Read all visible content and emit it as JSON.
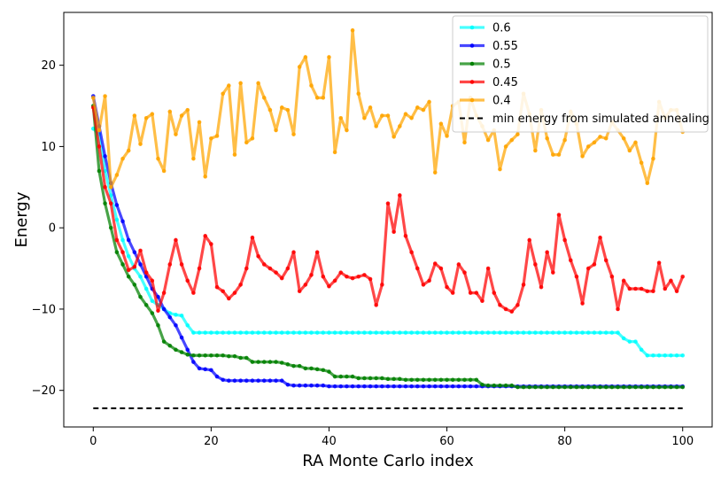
{
  "chart_data": {
    "type": "line",
    "title": "",
    "xlabel": "RA Monte Carlo index",
    "ylabel": "Energy",
    "xlim": [
      -5,
      105
    ],
    "ylim": [
      -24.5,
      26.5
    ],
    "xticks": [
      0,
      20,
      40,
      60,
      80,
      100
    ],
    "yticks": [
      -20,
      -10,
      0,
      10,
      20
    ],
    "xtick_labels": [
      "0",
      "20",
      "40",
      "60",
      "80",
      "100"
    ],
    "ytick_labels": [
      "−20",
      "−10",
      "0",
      "10",
      "20"
    ],
    "legend_position": "top-right",
    "series": [
      {
        "name": "0.6",
        "color": "#00ffff",
        "values": [
          12.2,
          11.5,
          7.0,
          4.0,
          1.0,
          -1.5,
          -3.5,
          -5.0,
          -6.0,
          -7.5,
          -9.0,
          -9.5,
          -10.0,
          -10.5,
          -10.7,
          -10.8,
          -12.0,
          -12.9,
          -12.9,
          -12.9,
          -12.9,
          -12.9,
          -12.9,
          -12.9,
          -12.9,
          -12.9,
          -12.9,
          -12.9,
          -12.9,
          -12.9,
          -12.9,
          -12.9,
          -12.9,
          -12.9,
          -12.9,
          -12.9,
          -12.9,
          -12.9,
          -12.9,
          -12.9,
          -12.9,
          -12.9,
          -12.9,
          -12.9,
          -12.9,
          -12.9,
          -12.9,
          -12.9,
          -12.9,
          -12.9,
          -12.9,
          -12.9,
          -12.9,
          -12.9,
          -12.9,
          -12.9,
          -12.9,
          -12.9,
          -12.9,
          -12.9,
          -12.9,
          -12.9,
          -12.9,
          -12.9,
          -12.9,
          -12.9,
          -12.9,
          -12.9,
          -12.9,
          -12.9,
          -12.9,
          -12.9,
          -12.9,
          -12.9,
          -12.9,
          -12.9,
          -12.9,
          -12.9,
          -12.9,
          -12.9,
          -12.9,
          -12.9,
          -12.9,
          -12.9,
          -12.9,
          -12.9,
          -12.9,
          -12.9,
          -12.9,
          -12.9,
          -13.6,
          -14.0,
          -14.0,
          -15.0,
          -15.7,
          -15.7,
          -15.7,
          -15.7,
          -15.7,
          -15.7,
          -15.7
        ]
      },
      {
        "name": "0.55",
        "color": "#0000ff",
        "values": [
          16.2,
          12.5,
          8.8,
          5.5,
          2.8,
          0.8,
          -1.5,
          -3.0,
          -4.5,
          -6.0,
          -7.5,
          -8.5,
          -10.0,
          -11.0,
          -12.0,
          -13.5,
          -15.0,
          -16.5,
          -17.3,
          -17.4,
          -17.5,
          -18.3,
          -18.7,
          -18.8,
          -18.8,
          -18.8,
          -18.8,
          -18.8,
          -18.8,
          -18.8,
          -18.8,
          -18.8,
          -18.8,
          -19.3,
          -19.4,
          -19.4,
          -19.4,
          -19.4,
          -19.4,
          -19.4,
          -19.5,
          -19.5,
          -19.5,
          -19.5,
          -19.5,
          -19.5,
          -19.5,
          -19.5,
          -19.5,
          -19.5,
          -19.5,
          -19.5,
          -19.5,
          -19.5,
          -19.5,
          -19.5,
          -19.5,
          -19.5,
          -19.5,
          -19.5,
          -19.5,
          -19.5,
          -19.5,
          -19.5,
          -19.5,
          -19.5,
          -19.5,
          -19.5,
          -19.5,
          -19.5,
          -19.5,
          -19.5,
          -19.5,
          -19.5,
          -19.5,
          -19.5,
          -19.5,
          -19.5,
          -19.5,
          -19.5,
          -19.5,
          -19.5,
          -19.5,
          -19.5,
          -19.5,
          -19.5,
          -19.5,
          -19.5,
          -19.5,
          -19.5,
          -19.5,
          -19.5,
          -19.5,
          -19.5,
          -19.5,
          -19.5,
          -19.5,
          -19.5,
          -19.5,
          -19.5,
          -19.5
        ]
      },
      {
        "name": "0.5",
        "color": "#008000",
        "values": [
          15.0,
          7.0,
          3.0,
          0.0,
          -3.0,
          -4.5,
          -6.0,
          -7.0,
          -8.5,
          -9.5,
          -10.5,
          -12.0,
          -14.0,
          -14.5,
          -15.0,
          -15.3,
          -15.6,
          -15.7,
          -15.7,
          -15.7,
          -15.7,
          -15.7,
          -15.7,
          -15.8,
          -15.8,
          -16.0,
          -16.0,
          -16.5,
          -16.5,
          -16.5,
          -16.5,
          -16.5,
          -16.6,
          -16.8,
          -17.0,
          -17.0,
          -17.3,
          -17.3,
          -17.4,
          -17.5,
          -17.7,
          -18.3,
          -18.3,
          -18.3,
          -18.3,
          -18.5,
          -18.5,
          -18.5,
          -18.5,
          -18.5,
          -18.6,
          -18.6,
          -18.6,
          -18.7,
          -18.7,
          -18.7,
          -18.7,
          -18.7,
          -18.7,
          -18.7,
          -18.7,
          -18.7,
          -18.7,
          -18.7,
          -18.7,
          -18.7,
          -19.3,
          -19.4,
          -19.4,
          -19.4,
          -19.4,
          -19.4,
          -19.6,
          -19.6,
          -19.6,
          -19.6,
          -19.6,
          -19.6,
          -19.6,
          -19.6,
          -19.6,
          -19.6,
          -19.6,
          -19.6,
          -19.6,
          -19.6,
          -19.6,
          -19.6,
          -19.6,
          -19.6,
          -19.6,
          -19.6,
          -19.6,
          -19.6,
          -19.6,
          -19.6,
          -19.6,
          -19.6,
          -19.6,
          -19.6,
          -19.6
        ]
      },
      {
        "name": "0.45",
        "color": "#ff0000",
        "values": [
          14.8,
          10.0,
          5.0,
          3.0,
          -1.5,
          -3.0,
          -5.2,
          -4.8,
          -2.8,
          -5.5,
          -6.5,
          -10.2,
          -8.0,
          -4.5,
          -1.5,
          -4.5,
          -6.5,
          -8.0,
          -5.0,
          -1.0,
          -2.0,
          -7.3,
          -7.8,
          -8.7,
          -8.0,
          -7.0,
          -5.0,
          -1.2,
          -3.5,
          -4.5,
          -5.0,
          -5.5,
          -6.2,
          -5.0,
          -3.0,
          -7.8,
          -7.0,
          -5.8,
          -3.0,
          -6.0,
          -7.2,
          -6.5,
          -5.5,
          -6.0,
          -6.2,
          -6.0,
          -5.8,
          -6.3,
          -9.5,
          -7.0,
          3.0,
          -0.5,
          4.0,
          -1.0,
          -3.0,
          -5.0,
          -7.0,
          -6.5,
          -4.4,
          -5.0,
          -7.3,
          -8.0,
          -4.5,
          -5.5,
          -8.0,
          -8.0,
          -9.0,
          -5.0,
          -8.0,
          -9.5,
          -10.0,
          -10.3,
          -9.5,
          -7.0,
          -1.5,
          -4.5,
          -7.3,
          -3.0,
          -5.5,
          1.6,
          -1.5,
          -4.0,
          -6.0,
          -9.3,
          -5.0,
          -4.5,
          -1.2,
          -4.0,
          -6.0,
          -10.0,
          -6.5,
          -7.5,
          -7.5,
          -7.5,
          -7.8,
          -7.8,
          -4.3,
          -7.5,
          -6.5,
          -7.8,
          -6.0
        ]
      },
      {
        "name": "0.4",
        "color": "#ffa500",
        "values": [
          16.0,
          12.0,
          16.2,
          5.0,
          6.5,
          8.5,
          9.5,
          13.8,
          10.3,
          13.5,
          14.0,
          8.5,
          7.0,
          14.3,
          11.5,
          13.8,
          14.5,
          8.5,
          13.0,
          6.3,
          11.0,
          11.3,
          16.5,
          17.5,
          9.0,
          17.8,
          10.5,
          11.0,
          17.8,
          16.0,
          14.5,
          12.0,
          14.8,
          14.5,
          11.5,
          19.8,
          21.0,
          17.5,
          16.0,
          16.0,
          21.0,
          9.3,
          13.5,
          12.0,
          24.3,
          16.5,
          13.5,
          14.8,
          12.5,
          13.8,
          13.8,
          11.2,
          12.5,
          14.0,
          13.5,
          14.8,
          14.5,
          15.5,
          6.8,
          12.8,
          11.3,
          15.0,
          15.5,
          10.5,
          16.0,
          13.8,
          12.5,
          10.8,
          12.0,
          7.2,
          10.0,
          10.8,
          11.5,
          16.5,
          14.0,
          9.5,
          14.5,
          11.0,
          9.0,
          9.0,
          10.8,
          14.3,
          12.8,
          8.8,
          10.0,
          10.5,
          11.2,
          11.0,
          13.0,
          12.0,
          11.0,
          9.5,
          10.5,
          8.0,
          5.5,
          8.5,
          15.5,
          13.5,
          14.5,
          14.5,
          11.8
        ]
      },
      {
        "name": "min energy from simulated annealing",
        "color": "#000000",
        "dashed": true,
        "values_x": [
          0,
          100
        ],
        "values": [
          -22.2,
          -22.2
        ]
      }
    ]
  }
}
